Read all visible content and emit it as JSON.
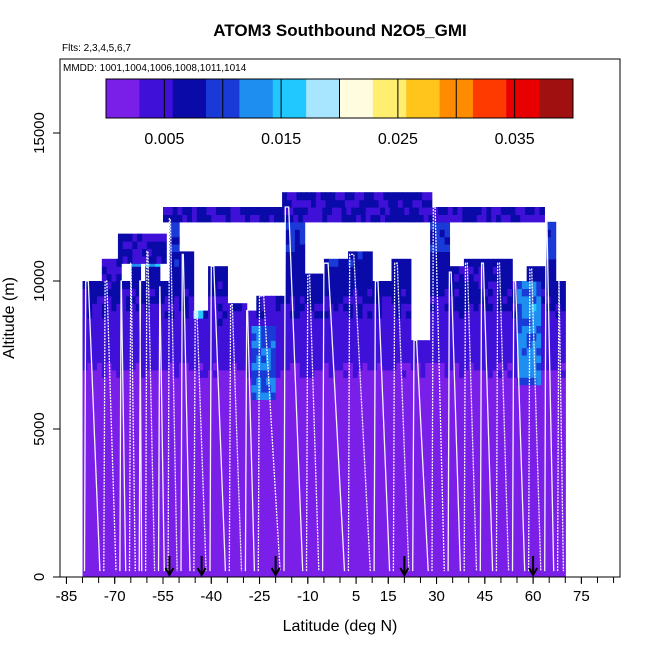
{
  "chart_data": {
    "type": "heatmap",
    "title": "ATOM3 Southbound N2O5_GMI",
    "flights_note": "Flts: 2,3,4,5,6,7",
    "mmdd_note": "MMDD: 1001,1004,1006,1008,1011,1014",
    "xlabel": "Latitude (deg N)",
    "ylabel": "Altitude (m)",
    "xlim": [
      -87,
      87
    ],
    "ylim": [
      0,
      17500
    ],
    "x_ticks": [
      "-85",
      "-70",
      "-55",
      "-40",
      "-25",
      "-10",
      "5",
      "15",
      "30",
      "45",
      "60",
      "75"
    ],
    "x_tick_values": [
      -85,
      -70,
      -55,
      -40,
      -25,
      -10,
      5,
      15,
      30,
      45,
      60,
      75
    ],
    "y_ticks": [
      "0",
      "5000",
      "10000",
      "15000"
    ],
    "y_tick_values": [
      0,
      5000,
      10000,
      15000
    ],
    "colorbar": {
      "range": [
        0,
        0.04
      ],
      "ticks": [
        "0.005",
        "0.015",
        "0.025",
        "0.035"
      ],
      "tick_values": [
        0.005,
        0.015,
        0.025,
        0.035
      ],
      "colors": [
        "#7a1fe8",
        "#3f10d8",
        "#0a0aa8",
        "#1a3ad8",
        "#1e8ef0",
        "#20c8ff",
        "#a8e6ff",
        "#fffce0",
        "#ffee70",
        "#ffc51c",
        "#ff8c00",
        "#ff3a00",
        "#e80000",
        "#a01010"
      ]
    },
    "arrow_latitudes": [
      -53,
      -43,
      -20,
      20,
      60
    ],
    "flight_tracks": [
      {
        "lat_start": -80,
        "lat_end": -74,
        "top": 10000
      },
      {
        "lat_start": -74,
        "lat_end": -69,
        "top": 10000
      },
      {
        "lat_start": -69,
        "lat_end": -66,
        "top": 10000
      },
      {
        "lat_start": -66,
        "lat_end": -63,
        "top": 10600
      },
      {
        "lat_start": -63,
        "lat_end": -61,
        "top": 10000
      },
      {
        "lat_start": -61,
        "lat_end": -57,
        "top": 11000
      },
      {
        "lat_start": -57,
        "lat_end": -54,
        "top": 9800
      },
      {
        "lat_start": -54,
        "lat_end": -50,
        "top": 12100
      },
      {
        "lat_start": -50,
        "lat_end": -46,
        "top": 10900
      },
      {
        "lat_start": -46,
        "lat_end": -41,
        "top": 9000
      },
      {
        "lat_start": -41,
        "lat_end": -35,
        "top": 10500
      },
      {
        "lat_start": -35,
        "lat_end": -30,
        "top": 9200
      },
      {
        "lat_start": -30,
        "lat_end": -26,
        "top": 9000
      },
      {
        "lat_start": -26,
        "lat_end": -18,
        "top": 9500
      },
      {
        "lat_start": -18,
        "lat_end": -11,
        "top": 12500
      },
      {
        "lat_start": -11,
        "lat_end": -6,
        "top": 10200
      },
      {
        "lat_start": -6,
        "lat_end": 2,
        "top": 10600
      },
      {
        "lat_start": 2,
        "lat_end": 10,
        "top": 10900
      },
      {
        "lat_start": 10,
        "lat_end": 16,
        "top": 10000
      },
      {
        "lat_start": 16,
        "lat_end": 22,
        "top": 10600
      },
      {
        "lat_start": 22,
        "lat_end": 28,
        "top": 8000
      },
      {
        "lat_start": 28,
        "lat_end": 33,
        "top": 12500
      },
      {
        "lat_start": 33,
        "lat_end": 38,
        "top": 10300
      },
      {
        "lat_start": 38,
        "lat_end": 43,
        "top": 10600
      },
      {
        "lat_start": 43,
        "lat_end": 48,
        "top": 10600
      },
      {
        "lat_start": 48,
        "lat_end": 53,
        "top": 10600
      },
      {
        "lat_start": 53,
        "lat_end": 58,
        "top": 10000
      },
      {
        "lat_start": 58,
        "lat_end": 63,
        "top": 10400
      },
      {
        "lat_start": 63,
        "lat_end": 67,
        "top": 12000
      },
      {
        "lat_start": 67,
        "lat_end": 70,
        "top": 10000
      }
    ],
    "blue_patches": [
      {
        "lat": [
          -65,
          -56
        ],
        "alt": [
          10400,
          11500
        ],
        "value": 0.014
      },
      {
        "lat": [
          -46,
          -43
        ],
        "alt": [
          8600,
          9200
        ],
        "value": 0.016
      },
      {
        "lat": [
          -28,
          -20
        ],
        "alt": [
          6000,
          8500
        ],
        "value": 0.011
      },
      {
        "lat": [
          55,
          62
        ],
        "alt": [
          6500,
          10000
        ],
        "value": 0.012
      },
      {
        "lat": [
          33,
          48
        ],
        "alt": [
          9000,
          10500
        ],
        "value": 0.006
      }
    ],
    "grid": false
  }
}
